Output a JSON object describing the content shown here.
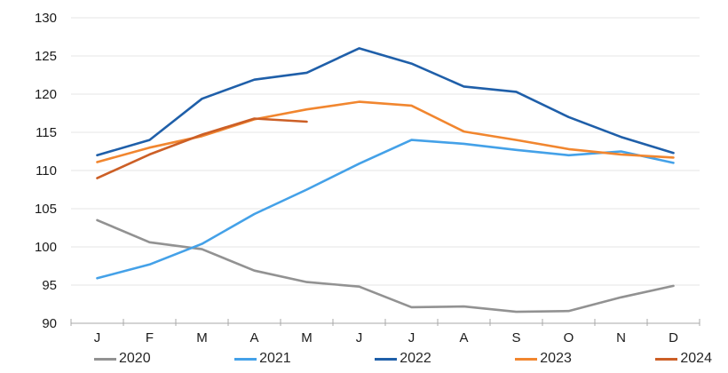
{
  "chart_data": {
    "type": "line",
    "x_categories": [
      "J",
      "F",
      "M",
      "A",
      "M",
      "J",
      "J",
      "A",
      "S",
      "O",
      "N",
      "D"
    ],
    "y_axis": {
      "min": 90,
      "max": 130,
      "step": 5,
      "tick_labels": [
        "90",
        "95",
        "100",
        "105",
        "110",
        "115",
        "120",
        "125",
        "130"
      ]
    },
    "ylim": [
      90,
      130
    ],
    "grid": "horizontal",
    "legend_position": "bottom",
    "series": [
      {
        "name": "2020",
        "color": "#929292",
        "values": [
          103.5,
          100.6,
          99.7,
          96.9,
          95.4,
          94.8,
          92.1,
          92.2,
          91.5,
          91.6,
          93.4,
          94.9
        ]
      },
      {
        "name": "2021",
        "color": "#44a1e8",
        "values": [
          95.9,
          97.7,
          100.4,
          104.3,
          107.5,
          110.9,
          114.0,
          113.5,
          112.7,
          112.0,
          112.5,
          111.0
        ]
      },
      {
        "name": "2022",
        "color": "#1f5fa9",
        "values": [
          112.0,
          114.0,
          119.4,
          121.9,
          122.8,
          126.0,
          124.0,
          121.0,
          120.3,
          117.0,
          114.4,
          112.3
        ]
      },
      {
        "name": "2023",
        "color": "#f1862f",
        "values": [
          111.1,
          113.0,
          114.5,
          116.7,
          118.0,
          119.0,
          118.5,
          115.1,
          114.0,
          112.8,
          112.1,
          111.7
        ]
      },
      {
        "name": "2024",
        "color": "#cc5f26",
        "values": [
          109.0,
          112.1,
          114.7,
          116.8,
          116.4,
          null,
          null,
          null,
          null,
          null,
          null,
          null
        ]
      }
    ]
  },
  "colors": {
    "background": "#ffffff",
    "gridline": "#e4e4e4",
    "axis": "#a9a9a9",
    "label": "#1a1a1a",
    "legend_text": "#262626"
  }
}
